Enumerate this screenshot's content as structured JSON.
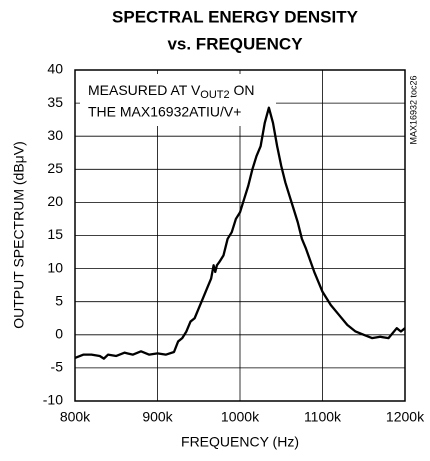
{
  "chart_data": {
    "type": "line",
    "title": "SPECTRAL ENERGY DENSITY",
    "subtitle": "vs. FREQUENCY",
    "x_label": "FREQUENCY (Hz)",
    "y_label": "OUTPUT SPECTRUM (dBμV)",
    "annotation": {
      "line1_pre": "MEASURED AT V",
      "line1_sub": "OUT2",
      "line1_post": " ON",
      "line2": "THE MAX16932ATIU/V+"
    },
    "side_note": "MAX16932 toc26",
    "grid": true,
    "color": "#000000",
    "xlim": [
      800000,
      1200000
    ],
    "xticks": [
      {
        "value": 800000,
        "label": "800k"
      },
      {
        "value": 900000,
        "label": "900k"
      },
      {
        "value": 1000000,
        "label": "1000k"
      },
      {
        "value": 1100000,
        "label": "1100k"
      },
      {
        "value": 1200000,
        "label": "1200k"
      }
    ],
    "ylim": [
      -10,
      40
    ],
    "yticks": [
      -10,
      -5,
      0,
      5,
      10,
      15,
      20,
      25,
      30,
      35,
      40
    ],
    "x": [
      800000,
      810000,
      820000,
      830000,
      835000,
      840000,
      850000,
      860000,
      870000,
      880000,
      890000,
      900000,
      910000,
      920000,
      925000,
      930000,
      935000,
      940000,
      945000,
      950000,
      955000,
      960000,
      965000,
      968000,
      970000,
      972000,
      975000,
      980000,
      985000,
      990000,
      995000,
      1000000,
      1005000,
      1010000,
      1015000,
      1020000,
      1025000,
      1030000,
      1035000,
      1040000,
      1045000,
      1050000,
      1055000,
      1060000,
      1065000,
      1070000,
      1075000,
      1080000,
      1090000,
      1100000,
      1110000,
      1120000,
      1130000,
      1140000,
      1150000,
      1160000,
      1170000,
      1180000,
      1190000,
      1195000,
      1200000
    ],
    "values": [
      -3.5,
      -3,
      -3,
      -3.2,
      -3.6,
      -3,
      -3.2,
      -2.7,
      -3,
      -2.5,
      -3,
      -2.8,
      -3,
      -2.6,
      -1,
      -0.5,
      0.5,
      2,
      2.5,
      4,
      5.5,
      7,
      8.5,
      10.5,
      9.5,
      10.5,
      11,
      12,
      14.5,
      15.5,
      17.5,
      18.5,
      20.5,
      22.5,
      25,
      27,
      28.5,
      32,
      34.3,
      32,
      28.5,
      25.5,
      23,
      21,
      19,
      17,
      14.5,
      13,
      9.5,
      6.5,
      4.5,
      3,
      1.5,
      0.5,
      0,
      -0.5,
      -0.3,
      -0.5,
      1,
      0.5,
      1
    ]
  }
}
